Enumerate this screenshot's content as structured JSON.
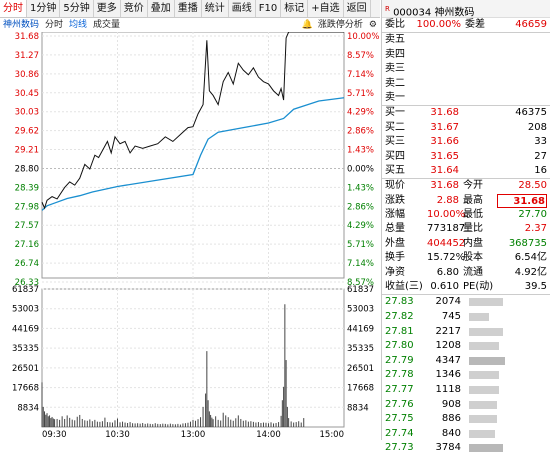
{
  "tabs": [
    "分时",
    "1分钟",
    "5分钟",
    "更多",
    "竞价",
    "叠加",
    "重播",
    "统计",
    "画线",
    "F10",
    "标记",
    "+自选",
    "返回"
  ],
  "subbar": {
    "stock": "神州数码",
    "label1": "分时",
    "label2": "均线",
    "label3": "成交量",
    "tool": "涨跌停分析"
  },
  "chart_data": {
    "type": "line",
    "price_ticks": [
      "31.68",
      "31.27",
      "30.86",
      "30.45",
      "30.03",
      "29.62",
      "29.21",
      "28.80",
      "28.39",
      "27.98",
      "27.57",
      "27.16",
      "26.74",
      "26.33"
    ],
    "pct_ticks": [
      "10.00%",
      "8.57%",
      "7.14%",
      "5.71%",
      "4.29%",
      "2.86%",
      "1.43%",
      "0.00%",
      "1.43%",
      "2.86%",
      "4.29%",
      "5.71%",
      "7.14%",
      "8.57%"
    ],
    "vol_ticks": [
      "61837",
      "53003",
      "44169",
      "35335",
      "26501",
      "17668",
      "8834"
    ],
    "time_labels": [
      "09:30",
      "10:30",
      "13:00",
      "14:00",
      "15:00"
    ],
    "price_range": [
      26.33,
      31.68
    ],
    "vol_range": [
      0,
      61837
    ],
    "price_series": [
      [
        0,
        27.98
      ],
      [
        2,
        27.85
      ],
      [
        4,
        28.02
      ],
      [
        8,
        28.1
      ],
      [
        12,
        28.05
      ],
      [
        18,
        28.3
      ],
      [
        22,
        28.42
      ],
      [
        26,
        28.35
      ],
      [
        30,
        28.5
      ],
      [
        34,
        28.8
      ],
      [
        38,
        28.7
      ],
      [
        42,
        29.0
      ],
      [
        45,
        28.95
      ],
      [
        48,
        29.1
      ],
      [
        52,
        29.3
      ],
      [
        55,
        29.05
      ],
      [
        58,
        29.4
      ],
      [
        62,
        29.25
      ],
      [
        66,
        29.3
      ],
      [
        70,
        29.05
      ],
      [
        74,
        29.2
      ],
      [
        80,
        29.15
      ],
      [
        86,
        29.2
      ],
      [
        92,
        29.25
      ],
      [
        98,
        29.4
      ],
      [
        104,
        29.3
      ],
      [
        110,
        29.45
      ],
      [
        116,
        29.6
      ],
      [
        120,
        29.62
      ],
      [
        124,
        29.9
      ],
      [
        128,
        30.1
      ],
      [
        131,
        31.5
      ],
      [
        133,
        30.4
      ],
      [
        136,
        30.3
      ],
      [
        140,
        30.1
      ],
      [
        144,
        30.6
      ],
      [
        148,
        30.8
      ],
      [
        152,
        30.55
      ],
      [
        156,
        31.0
      ],
      [
        160,
        30.85
      ],
      [
        164,
        30.75
      ],
      [
        168,
        30.9
      ],
      [
        172,
        30.7
      ],
      [
        176,
        30.6
      ],
      [
        180,
        30.55
      ],
      [
        184,
        30.4
      ],
      [
        188,
        30.3
      ],
      [
        190,
        30.45
      ],
      [
        192,
        30.2
      ],
      [
        194,
        31.55
      ],
      [
        196,
        31.68
      ],
      [
        220,
        31.68
      ],
      [
        240,
        31.68
      ]
    ],
    "avg_series": [
      [
        0,
        27.8
      ],
      [
        4,
        27.9
      ],
      [
        10,
        27.96
      ],
      [
        20,
        28.06
      ],
      [
        30,
        28.12
      ],
      [
        40,
        28.2
      ],
      [
        60,
        28.32
      ],
      [
        90,
        28.45
      ],
      [
        120,
        28.58
      ],
      [
        126,
        29.0
      ],
      [
        132,
        29.35
      ],
      [
        140,
        29.5
      ],
      [
        160,
        29.6
      ],
      [
        180,
        29.7
      ],
      [
        192,
        29.8
      ],
      [
        200,
        30.0
      ],
      [
        220,
        30.18
      ],
      [
        240,
        30.25
      ]
    ],
    "volume_bars": [
      [
        0,
        20000
      ],
      [
        1,
        9000
      ],
      [
        2,
        7000
      ],
      [
        3,
        5500
      ],
      [
        4,
        6200
      ],
      [
        5,
        4800
      ],
      [
        6,
        5200
      ],
      [
        7,
        4000
      ],
      [
        8,
        4500
      ],
      [
        9,
        3800
      ],
      [
        10,
        3500
      ],
      [
        12,
        3600
      ],
      [
        14,
        3200
      ],
      [
        16,
        4800
      ],
      [
        18,
        3600
      ],
      [
        20,
        5200
      ],
      [
        22,
        4100
      ],
      [
        24,
        3300
      ],
      [
        26,
        3000
      ],
      [
        28,
        4600
      ],
      [
        30,
        5400
      ],
      [
        32,
        3600
      ],
      [
        34,
        3000
      ],
      [
        36,
        2800
      ],
      [
        38,
        3400
      ],
      [
        40,
        2600
      ],
      [
        42,
        3200
      ],
      [
        44,
        2400
      ],
      [
        46,
        2300
      ],
      [
        48,
        2600
      ],
      [
        50,
        4200
      ],
      [
        52,
        2200
      ],
      [
        54,
        2100
      ],
      [
        56,
        2000
      ],
      [
        58,
        3000
      ],
      [
        60,
        3800
      ],
      [
        62,
        2100
      ],
      [
        64,
        2400
      ],
      [
        66,
        2000
      ],
      [
        68,
        1800
      ],
      [
        70,
        2200
      ],
      [
        72,
        1700
      ],
      [
        74,
        1600
      ],
      [
        76,
        1700
      ],
      [
        78,
        1500
      ],
      [
        80,
        1800
      ],
      [
        82,
        1400
      ],
      [
        84,
        1600
      ],
      [
        86,
        1400
      ],
      [
        88,
        1300
      ],
      [
        90,
        1700
      ],
      [
        92,
        1400
      ],
      [
        94,
        1300
      ],
      [
        96,
        1500
      ],
      [
        98,
        1400
      ],
      [
        100,
        1200
      ],
      [
        102,
        1500
      ],
      [
        104,
        1300
      ],
      [
        106,
        1200
      ],
      [
        108,
        1400
      ],
      [
        110,
        1100
      ],
      [
        112,
        1600
      ],
      [
        114,
        1700
      ],
      [
        116,
        1900
      ],
      [
        118,
        2400
      ],
      [
        120,
        3200
      ],
      [
        122,
        2800
      ],
      [
        124,
        3500
      ],
      [
        126,
        4400
      ],
      [
        128,
        9000
      ],
      [
        130,
        15000
      ],
      [
        131,
        34000
      ],
      [
        132,
        12000
      ],
      [
        133,
        7000
      ],
      [
        134,
        5400
      ],
      [
        135,
        4200
      ],
      [
        136,
        3500
      ],
      [
        138,
        4800
      ],
      [
        140,
        3200
      ],
      [
        142,
        2900
      ],
      [
        144,
        6400
      ],
      [
        146,
        5200
      ],
      [
        148,
        4400
      ],
      [
        150,
        3300
      ],
      [
        152,
        2800
      ],
      [
        154,
        3900
      ],
      [
        156,
        5200
      ],
      [
        158,
        3600
      ],
      [
        160,
        2800
      ],
      [
        162,
        3000
      ],
      [
        164,
        2400
      ],
      [
        166,
        2600
      ],
      [
        168,
        2300
      ],
      [
        170,
        2000
      ],
      [
        172,
        2200
      ],
      [
        174,
        1800
      ],
      [
        176,
        2000
      ],
      [
        178,
        1900
      ],
      [
        180,
        1700
      ],
      [
        182,
        2100
      ],
      [
        184,
        1600
      ],
      [
        186,
        1800
      ],
      [
        188,
        2200
      ],
      [
        190,
        5000
      ],
      [
        191,
        12000
      ],
      [
        192,
        18000
      ],
      [
        193,
        55000
      ],
      [
        194,
        30000
      ],
      [
        195,
        9000
      ],
      [
        196,
        4000
      ],
      [
        198,
        2500
      ],
      [
        200,
        2000
      ],
      [
        202,
        2200
      ],
      [
        204,
        2600
      ],
      [
        206,
        2000
      ],
      [
        208,
        4000
      ]
    ]
  },
  "quote": {
    "code": "000034",
    "name": "神州数码",
    "wei_bi_label": "委比",
    "wei_bi": "100.00%",
    "wei_cha_label": "委差",
    "wei_cha": "46659",
    "sells": [
      "卖五",
      "卖四",
      "卖三",
      "卖二",
      "卖一"
    ],
    "buys": [
      {
        "label": "买一",
        "price": "31.68",
        "vol": "46375"
      },
      {
        "label": "买二",
        "price": "31.67",
        "vol": "208"
      },
      {
        "label": "买三",
        "price": "31.66",
        "vol": "33"
      },
      {
        "label": "买四",
        "price": "31.65",
        "vol": "27"
      },
      {
        "label": "买五",
        "price": "31.64",
        "vol": "16"
      }
    ],
    "stats": [
      [
        "现价",
        "31.68",
        "今开",
        "28.50"
      ],
      [
        "涨跌",
        "2.88",
        "最高",
        "31.68"
      ],
      [
        "涨幅",
        "10.00%",
        "最低",
        "27.70"
      ],
      [
        "总量",
        "773187",
        "量比",
        "2.37"
      ],
      [
        "外盘",
        "404452",
        "内盘",
        "368735"
      ],
      [
        "换手",
        "15.72%",
        "股本",
        "6.54亿"
      ],
      [
        "净资",
        "6.80",
        "流通",
        "4.92亿"
      ],
      [
        "收益(三)",
        "0.610",
        "PE(动)",
        "39.5"
      ]
    ],
    "ticks": [
      {
        "p": "27.83",
        "v": "2074",
        "w": 34
      },
      {
        "p": "27.82",
        "v": "745",
        "w": 20
      },
      {
        "p": "27.81",
        "v": "2217",
        "w": 34
      },
      {
        "p": "27.80",
        "v": "1208",
        "w": 30
      },
      {
        "p": "27.79",
        "v": "4347",
        "w": 36
      },
      {
        "p": "27.78",
        "v": "1346",
        "w": 30
      },
      {
        "p": "27.77",
        "v": "1118",
        "w": 30
      },
      {
        "p": "27.76",
        "v": "908",
        "w": 28
      },
      {
        "p": "27.75",
        "v": "886",
        "w": 28
      },
      {
        "p": "27.74",
        "v": "840",
        "w": 26
      },
      {
        "p": "27.73",
        "v": "3784",
        "w": 34
      }
    ]
  }
}
